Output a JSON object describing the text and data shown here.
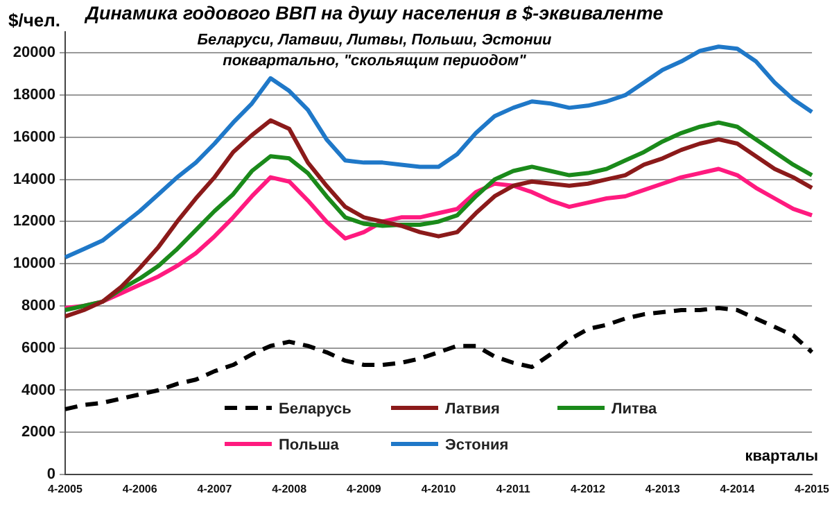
{
  "chart_data": {
    "type": "line",
    "title": "Динамика годового ВВП на душу населения в $-эквиваленте",
    "subtitle": "Беларуси, Латвии, Литвы, Польши, Эстонии\nпоквартально, \"скольящим периодом\"",
    "ylabel": "$/чел.",
    "xlabel": "кварталы",
    "categories": [
      "4-2005",
      null,
      null,
      null,
      "4-2006",
      null,
      null,
      null,
      "4-2007",
      null,
      null,
      null,
      "4-2008",
      null,
      null,
      null,
      "4-2009",
      null,
      null,
      null,
      "4-2010",
      null,
      null,
      null,
      "4-2011",
      null,
      null,
      null,
      "4-2012",
      null,
      null,
      null,
      "4-2013",
      null,
      null,
      null,
      "4-2014",
      null,
      null,
      null,
      "4-2015"
    ],
    "ylim": [
      0,
      21000
    ],
    "yticks": [
      0,
      2000,
      4000,
      6000,
      8000,
      10000,
      12000,
      14000,
      16000,
      18000,
      20000
    ],
    "grid": "y",
    "legend": "bottom",
    "marker": "none",
    "series": [
      {
        "name": "Беларусь",
        "color": "#000000",
        "line_style": "dashed",
        "values": [
          3100,
          3300,
          3400,
          3600,
          3800,
          4000,
          4300,
          4500,
          4900,
          5200,
          5700,
          6100,
          6300,
          6100,
          5800,
          5400,
          5200,
          5200,
          5300,
          5500,
          5800,
          6100,
          6100,
          5600,
          5300,
          5100,
          5700,
          6400,
          6900,
          7100,
          7400,
          7600,
          7700,
          7800,
          7800,
          7900,
          7800,
          7400,
          7000,
          6600,
          5800
        ]
      },
      {
        "name": "Латвия",
        "color": "#8b1a1a",
        "values": [
          7500,
          7800,
          8200,
          8900,
          9800,
          10800,
          12000,
          13100,
          14100,
          15300,
          16100,
          16800,
          16400,
          14800,
          13700,
          12700,
          12200,
          12000,
          11800,
          11500,
          11300,
          11500,
          12400,
          13200,
          13700,
          13900,
          13800,
          13700,
          13800,
          14000,
          14200,
          14700,
          15000,
          15400,
          15700,
          15900,
          15700,
          15100,
          14500,
          14100,
          13600
        ]
      },
      {
        "name": "Литва",
        "color": "#1a8a1a",
        "values": [
          7800,
          8000,
          8200,
          8800,
          9300,
          9900,
          10700,
          11600,
          12500,
          13300,
          14400,
          15100,
          15000,
          14300,
          13200,
          12200,
          11900,
          11800,
          11850,
          11850,
          12000,
          12300,
          13200,
          14000,
          14400,
          14600,
          14400,
          14200,
          14300,
          14500,
          14900,
          15300,
          15800,
          16200,
          16500,
          16700,
          16500,
          15900,
          15300,
          14700,
          14200
        ]
      },
      {
        "name": "Польша",
        "color": "#ff1a7f",
        "values": [
          7900,
          8000,
          8200,
          8600,
          9000,
          9400,
          9900,
          10500,
          11300,
          12200,
          13200,
          14100,
          13900,
          13000,
          12000,
          11200,
          11500,
          12000,
          12200,
          12200,
          12400,
          12600,
          13400,
          13800,
          13700,
          13400,
          13000,
          12700,
          12900,
          13100,
          13200,
          13500,
          13800,
          14100,
          14300,
          14500,
          14200,
          13600,
          13100,
          12600,
          12300
        ]
      },
      {
        "name": "Эстония",
        "color": "#1f78c8",
        "values": [
          10300,
          10700,
          11100,
          11800,
          12500,
          13300,
          14100,
          14800,
          15700,
          16700,
          17600,
          18800,
          18200,
          17300,
          15900,
          14900,
          14800,
          14800,
          14700,
          14600,
          14600,
          15200,
          16200,
          17000,
          17400,
          17700,
          17600,
          17400,
          17500,
          17700,
          18000,
          18600,
          19200,
          19600,
          20100,
          20300,
          20200,
          19600,
          18600,
          17800,
          17200
        ]
      }
    ]
  }
}
